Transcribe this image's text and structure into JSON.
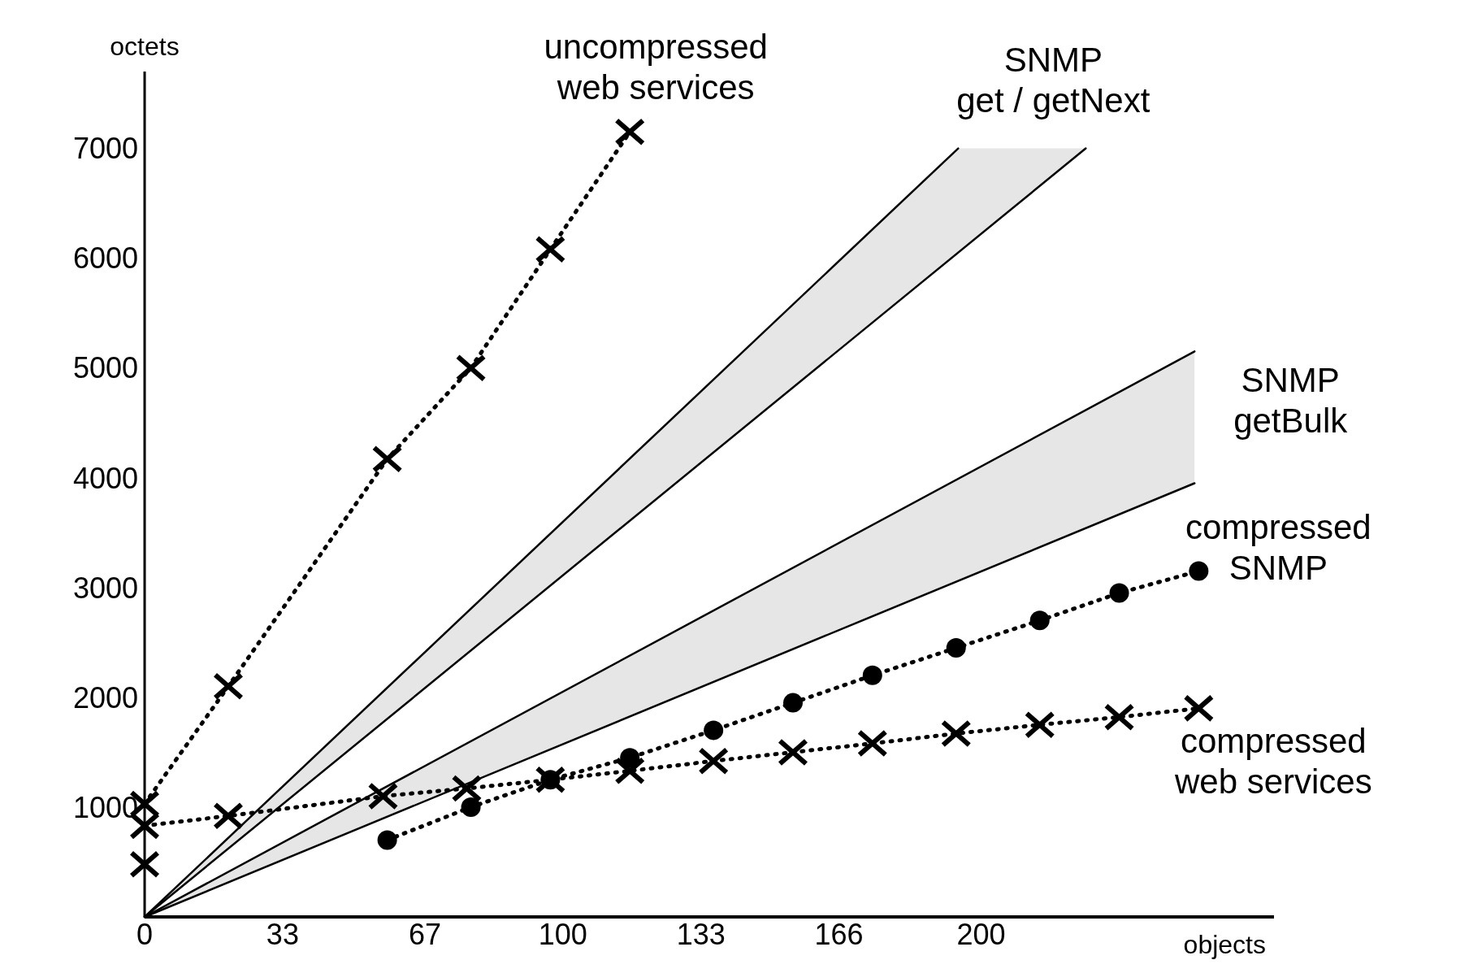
{
  "chart_data": {
    "type": "line",
    "xlabel": "objects",
    "ylabel": "octets",
    "xlim": [
      0,
      270
    ],
    "ylim": [
      0,
      7700
    ],
    "xticks": [
      0,
      33,
      67,
      100,
      133,
      166,
      200
    ],
    "yticks": [
      1000,
      2000,
      3000,
      4000,
      5000,
      6000,
      7000
    ],
    "grid": false,
    "legend": false,
    "series": [
      {
        "name": "SNMP get / getNext",
        "color": "#000000",
        "x": [
          0,
          194.5,
          225
        ],
        "values": [
          0,
          7000,
          null
        ],
        "lower": [
          0,
          6050,
          7000
        ],
        "upper": [
          0,
          7000,
          7000
        ],
        "marker": "none",
        "line_style": "solid"
      },
      {
        "color": "#000000",
        "x": [
          0,
          225
        ],
        "values": [
          0,
          7000
        ],
        "marker": "none",
        "line_style": "solid"
      },
      {
        "name": "SNMP getBulk",
        "color": "#000000",
        "x": [
          0,
          251
        ],
        "values": [
          0,
          5150
        ],
        "lower": [
          0,
          3950
        ],
        "upper": [
          0,
          5150
        ],
        "marker": "none",
        "line_style": "solid"
      },
      {
        "color": "#000000",
        "x": [
          0,
          251
        ],
        "values": [
          0,
          3950
        ],
        "marker": "none",
        "line_style": "solid"
      },
      {
        "name": "uncompressed web services",
        "color": "#000000",
        "x": [
          0,
          20,
          58,
          78,
          97,
          116
        ],
        "values": [
          1030,
          2100,
          4170,
          5000,
          6080,
          7150
        ],
        "marker": "cross",
        "line_style": "dotted"
      },
      {
        "name": "compressed SNMP",
        "color": "#000000",
        "x": [
          58,
          78,
          97,
          116,
          136,
          155,
          174,
          194,
          214,
          233,
          252
        ],
        "values": [
          700,
          1000,
          1250,
          1450,
          1700,
          1950,
          2200,
          2450,
          2700,
          2950,
          3150
        ],
        "marker": "circle",
        "line_style": "dotted"
      },
      {
        "name": "compressed web services",
        "color": "#000000",
        "x": [
          0,
          20,
          57,
          77,
          97,
          116,
          136,
          155,
          174,
          194,
          214,
          233,
          252
        ],
        "values": [
          830,
          920,
          1100,
          1170,
          1250,
          1330,
          1420,
          1500,
          1580,
          1670,
          1750,
          1820,
          1900
        ],
        "marker": "cross",
        "line_style": "dotted"
      },
      {
        "type": "scatter",
        "color": "#000000",
        "x": [
          0
        ],
        "values": [
          480
        ],
        "marker": "cross"
      }
    ]
  }
}
